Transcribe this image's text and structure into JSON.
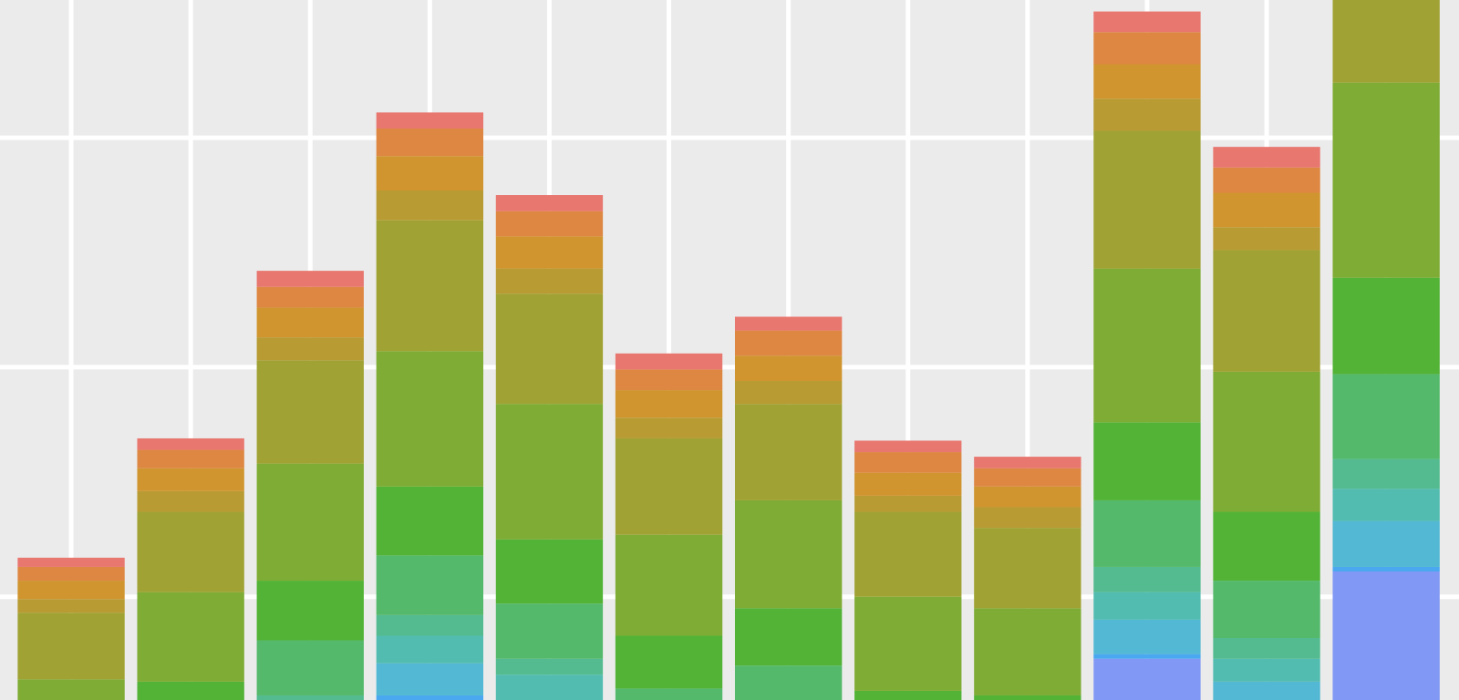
{
  "chart_data": {
    "type": "stacked-bar",
    "categories": [
      null,
      null,
      null,
      null,
      null,
      null,
      null,
      null,
      null,
      null,
      null,
      null
    ],
    "ylim": [
      0.5,
      31
    ],
    "yticks": [
      5,
      15,
      25
    ],
    "grid": true,
    "series": [
      {
        "color": "#8198f5",
        "values": [
          null,
          null,
          null,
          null,
          null,
          null,
          null,
          null,
          null,
          2.3,
          null,
          6.1
        ]
      },
      {
        "color": "#4aa8f0",
        "values": [
          null,
          null,
          null,
          0.7,
          null,
          null,
          null,
          null,
          null,
          0.2,
          null,
          0.2
        ]
      },
      {
        "color": "#52b8d3",
        "values": [
          null,
          null,
          null,
          1.4,
          null,
          null,
          null,
          null,
          null,
          1.5,
          1.3,
          2.0
        ]
      },
      {
        "color": "#52bcb1",
        "values": [
          null,
          null,
          null,
          1.2,
          1.6,
          null,
          null,
          null,
          null,
          1.2,
          1.0,
          1.4
        ]
      },
      {
        "color": "#53bb8f",
        "values": [
          null,
          null,
          0.7,
          0.9,
          0.7,
          null,
          null,
          null,
          null,
          1.1,
          0.9,
          1.3
        ]
      },
      {
        "color": "#54b96b",
        "values": [
          null,
          null,
          2.4,
          2.6,
          2.4,
          1.0,
          2.0,
          null,
          null,
          2.9,
          2.5,
          3.7
        ]
      },
      {
        "color": "#52b336",
        "values": [
          null,
          1.3,
          2.6,
          3.0,
          2.8,
          2.3,
          2.5,
          0.9,
          0.7,
          3.4,
          3.0,
          4.2
        ]
      },
      {
        "color": "#7fac34",
        "values": [
          1.4,
          3.9,
          5.1,
          5.9,
          5.9,
          4.4,
          4.7,
          4.1,
          3.8,
          6.7,
          6.1,
          8.5
        ]
      },
      {
        "color": "#a0a334",
        "values": [
          2.9,
          3.5,
          4.5,
          5.7,
          4.8,
          4.2,
          4.2,
          3.7,
          3.5,
          6.0,
          5.3,
          5.0
        ]
      },
      {
        "color": "#b89b33",
        "values": [
          0.6,
          0.9,
          1.0,
          1.3,
          1.1,
          0.9,
          1.0,
          0.7,
          0.9,
          1.4,
          1.0,
          null
        ]
      },
      {
        "color": "#d0952f",
        "values": [
          0.8,
          1.0,
          1.3,
          1.5,
          1.4,
          1.2,
          1.1,
          1.0,
          0.9,
          1.5,
          1.5,
          null
        ]
      },
      {
        "color": "#de8742",
        "values": [
          0.6,
          0.8,
          0.9,
          1.2,
          1.1,
          0.9,
          1.1,
          0.9,
          0.8,
          1.4,
          1.1,
          null
        ]
      },
      {
        "color": "#e8776f",
        "values": [
          0.4,
          0.5,
          0.7,
          0.7,
          0.7,
          0.7,
          0.6,
          0.5,
          0.5,
          0.9,
          0.9,
          null
        ]
      }
    ]
  }
}
